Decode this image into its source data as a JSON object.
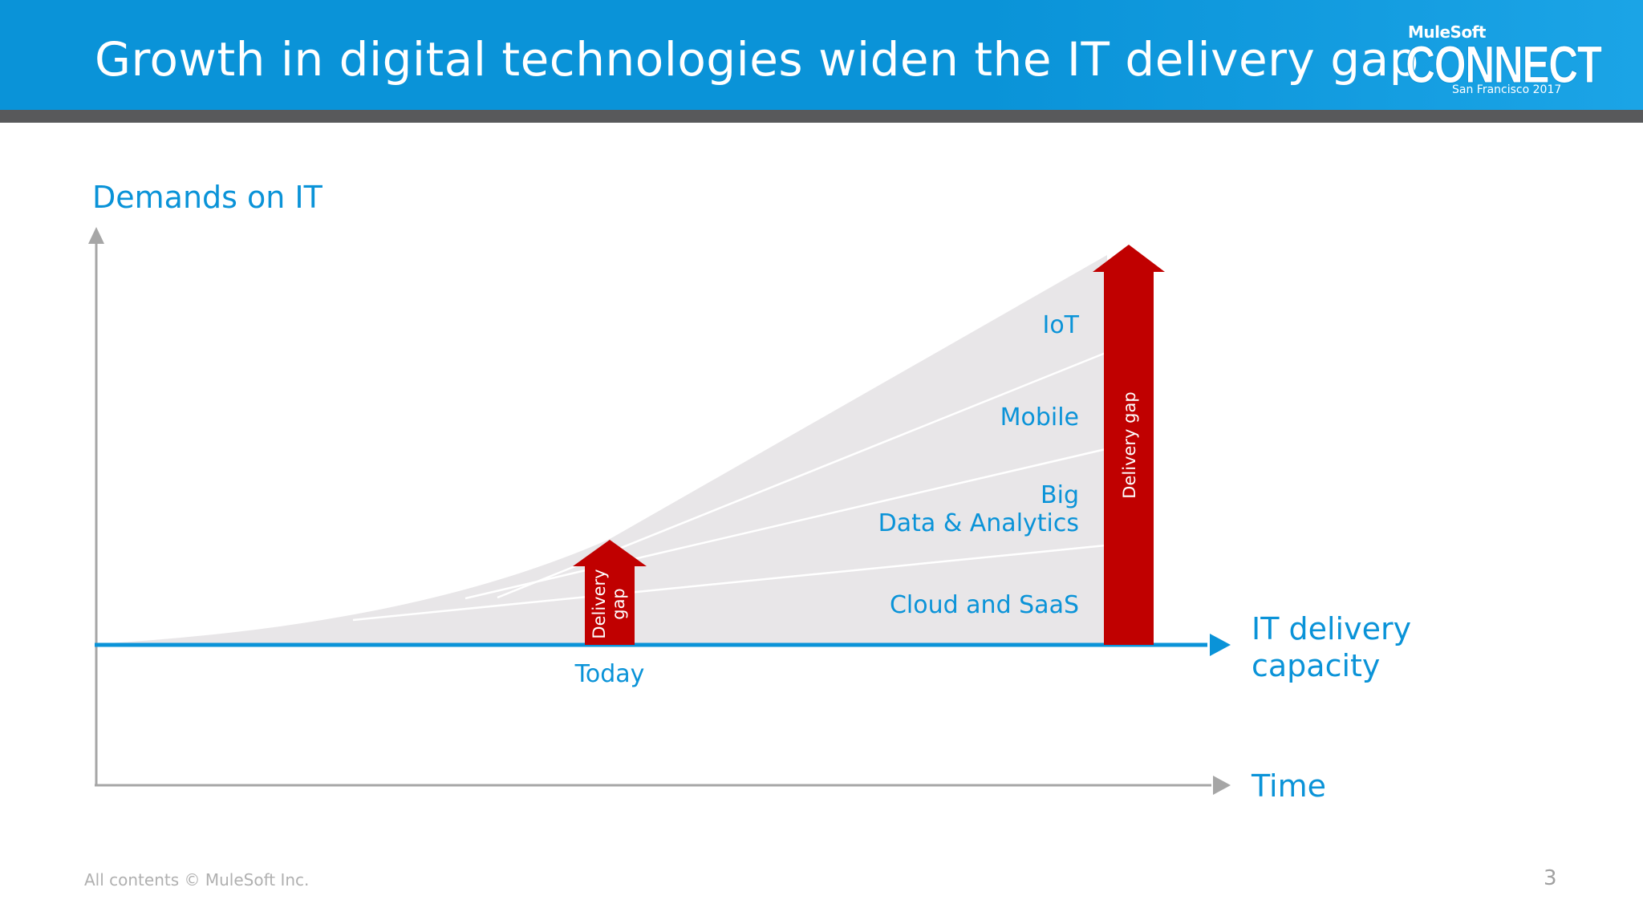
{
  "slide": {
    "title": "Growth in digital technologies widen the IT delivery gap",
    "page_number": "3",
    "footer": "All contents © MuleSoft Inc."
  },
  "logo": {
    "brand": "MuleSoft",
    "event": "CONNECT",
    "location": "San Francisco 2017"
  },
  "diagram": {
    "y_axis_label": "Demands on IT",
    "x_axis_label": "Time",
    "baseline_label_line1": "IT delivery",
    "baseline_label_line2": "capacity",
    "today_label": "Today",
    "layers": [
      {
        "label": "IoT"
      },
      {
        "label": "Mobile"
      },
      {
        "label_line1": "Big",
        "label_line2": "Data & Analytics"
      },
      {
        "label": "Cloud and SaaS"
      }
    ],
    "gap_small_line1": "Delivery",
    "gap_small_line2": "gap",
    "gap_large": "Delivery gap"
  },
  "colors": {
    "header": "#0a93d8",
    "accent_text": "#0a93d8",
    "gap_arrow": "#c00000",
    "wedge": "#e8e6e8",
    "axis": "#a6a6a6"
  }
}
